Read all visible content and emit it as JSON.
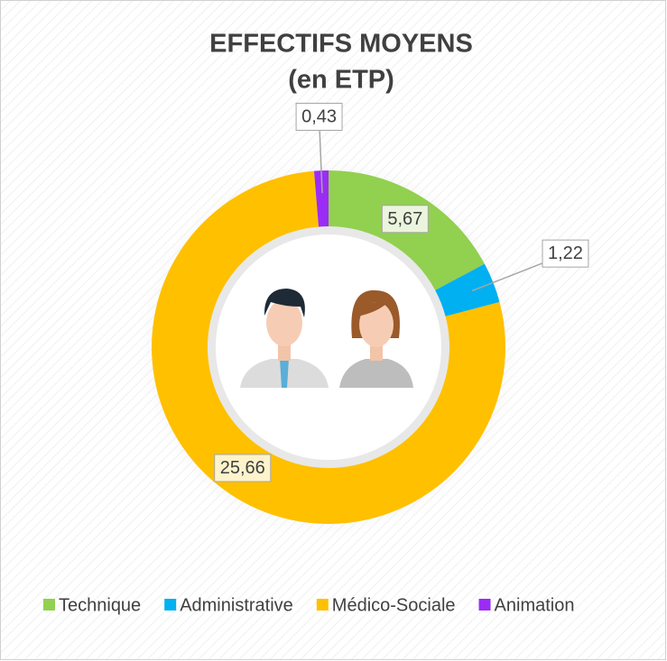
{
  "chart_data": {
    "type": "donut",
    "title": "EFFECTIFS MOYENS",
    "subtitle": "(en ETP)",
    "categories": [
      "Technique",
      "Administrative",
      "Médico-Sociale",
      "Animation"
    ],
    "values": [
      5.67,
      1.22,
      25.66,
      0.43
    ],
    "value_labels": [
      "5,67",
      "1,22",
      "25,66",
      "0,43"
    ],
    "colors": [
      "#92d050",
      "#00b0f0",
      "#ffc000",
      "#9b2cf5"
    ],
    "legend": "bottom"
  }
}
